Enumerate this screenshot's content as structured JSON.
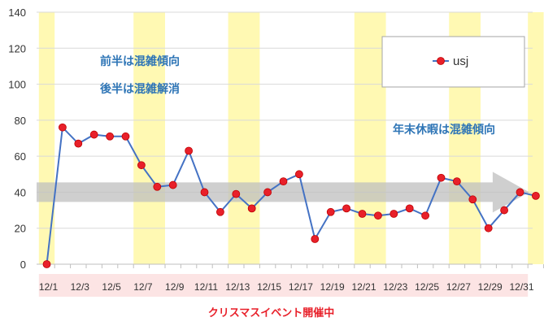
{
  "chart_data": {
    "type": "line",
    "title": "",
    "xlabel": "",
    "ylabel": "",
    "ylim": [
      0,
      140
    ],
    "yticks": [
      0,
      20,
      40,
      60,
      80,
      100,
      120,
      140
    ],
    "grid": "horizontal",
    "legend_placement": "top-right",
    "categories": [
      "12/1",
      "12/2",
      "12/3",
      "12/4",
      "12/5",
      "12/6",
      "12/7",
      "12/8",
      "12/9",
      "12/10",
      "12/11",
      "12/12",
      "12/13",
      "12/14",
      "12/15",
      "12/16",
      "12/17",
      "12/18",
      "12/19",
      "12/20",
      "12/21",
      "12/22",
      "12/23",
      "12/24",
      "12/25",
      "12/26",
      "12/27",
      "12/28",
      "12/29",
      "12/30",
      "12/31",
      "1/1"
    ],
    "x_tick_labels": [
      "12/1",
      "12/3",
      "12/5",
      "12/7",
      "12/9",
      "12/11",
      "12/13",
      "12/15",
      "12/17",
      "12/19",
      "12/21",
      "12/23",
      "12/25",
      "12/27",
      "12/29",
      "12/31"
    ],
    "series": [
      {
        "name": "usj",
        "values": [
          0,
          76,
          67,
          72,
          71,
          71,
          55,
          43,
          44,
          63,
          40,
          29,
          39,
          31,
          40,
          46,
          50,
          14,
          29,
          31,
          28,
          27,
          28,
          31,
          27,
          48,
          46,
          36,
          20,
          30,
          40,
          38
        ]
      }
    ],
    "highlight_bands": [
      {
        "from": "12/1",
        "to": "12/1"
      },
      {
        "from": "12/7",
        "to": "12/8"
      },
      {
        "from": "12/13",
        "to": "12/14"
      },
      {
        "from": "12/21",
        "to": "12/22"
      },
      {
        "from": "12/27",
        "to": "12/28"
      },
      {
        "from": "1/1",
        "to": "1/1"
      }
    ],
    "trend_arrow": {
      "value": 40,
      "from": "12/1",
      "to": "1/1"
    },
    "annotations": [
      "前半は混雑傾向",
      "後半は混雑解消",
      "年末休暇は混雑傾向"
    ],
    "footer_band": {
      "from": "12/1",
      "to": "12/31",
      "label": "クリスマスイベント開催中"
    },
    "colors": {
      "line": "#4472c4",
      "marker": "#e8202a",
      "marker_faded": "#ed7d31",
      "band": "#fff9b3",
      "arrow": "#bfbfbf",
      "annotation": "#2e75b6",
      "footer_text": "#e8202a",
      "footer_band": "#fce4e4"
    }
  }
}
